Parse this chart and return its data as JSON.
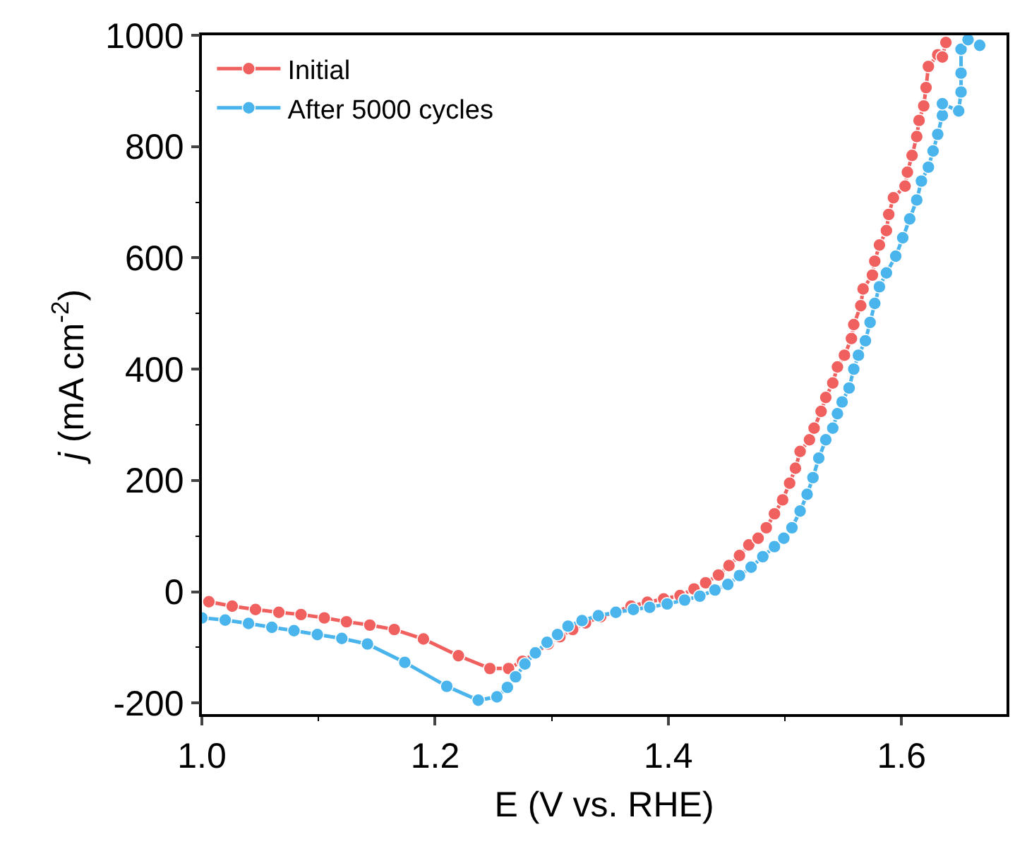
{
  "chart_data": {
    "type": "line",
    "xlabel": "E (V vs. RHE)",
    "ylabel": "j (mA cm$^{-2}$)",
    "xlim": [
      1.0,
      1.69
    ],
    "xticks": [
      {
        "value": 1.0,
        "label": "1.0"
      },
      {
        "value": 1.2,
        "label": "1.2"
      },
      {
        "value": 1.4,
        "label": "1.4"
      },
      {
        "value": 1.6,
        "label": "1.6"
      }
    ],
    "ylim": [
      -220,
      1000
    ],
    "yticks": [
      -200,
      0,
      200,
      400,
      600,
      800,
      1000
    ],
    "legend": "top left",
    "marker": "circle",
    "line_style": "solid",
    "series": [
      {
        "name": "Initial",
        "color": "#f0605f",
        "x": [
          1.006,
          1.026,
          1.046,
          1.066,
          1.085,
          1.105,
          1.124,
          1.144,
          1.165,
          1.19,
          1.22,
          1.247,
          1.263,
          1.275,
          1.286,
          1.297,
          1.307,
          1.318,
          1.329,
          1.342,
          1.355,
          1.368,
          1.382,
          1.396,
          1.41,
          1.422,
          1.432,
          1.443,
          1.452,
          1.461,
          1.469,
          1.477,
          1.484,
          1.491,
          1.498,
          1.504,
          1.509,
          1.513,
          1.521,
          1.525,
          1.531,
          1.535,
          1.541,
          1.545,
          1.551,
          1.557,
          1.559,
          1.565,
          1.567,
          1.575,
          1.577,
          1.581,
          1.587,
          1.589,
          1.593,
          1.603,
          1.605,
          1.609,
          1.613,
          1.615,
          1.619,
          1.621,
          1.623,
          1.631,
          1.635,
          1.638
        ],
        "values": [
          -18,
          -26,
          -32,
          -37,
          -41,
          -47,
          -54,
          -60,
          -68,
          -85,
          -115,
          -138,
          -138,
          -125,
          -110,
          -94,
          -81,
          -68,
          -56,
          -45,
          -36,
          -26,
          -19,
          -13,
          -7,
          5,
          16,
          30,
          47,
          65,
          84,
          96,
          115,
          140,
          165,
          195,
          222,
          252,
          273,
          294,
          324,
          349,
          375,
          404,
          425,
          455,
          480,
          514,
          544,
          569,
          594,
          623,
          649,
          678,
          708,
          729,
          754,
          784,
          818,
          847,
          873,
          906,
          944,
          965,
          961,
          987
        ]
      },
      {
        "name": "After 5000 cycles",
        "color": "#4ab4ec",
        "x": [
          1.0,
          1.02,
          1.04,
          1.06,
          1.079,
          1.099,
          1.12,
          1.142,
          1.174,
          1.21,
          1.237,
          1.253,
          1.262,
          1.269,
          1.277,
          1.286,
          1.296,
          1.305,
          1.314,
          1.326,
          1.34,
          1.355,
          1.37,
          1.384,
          1.399,
          1.414,
          1.427,
          1.44,
          1.451,
          1.461,
          1.471,
          1.481,
          1.491,
          1.499,
          1.506,
          1.513,
          1.519,
          1.524,
          1.529,
          1.535,
          1.541,
          1.545,
          1.549,
          1.555,
          1.559,
          1.563,
          1.569,
          1.573,
          1.577,
          1.581,
          1.587,
          1.595,
          1.601,
          1.607,
          1.613,
          1.617,
          1.623,
          1.627,
          1.631,
          1.635,
          1.635,
          1.649,
          1.651,
          1.651,
          1.651,
          1.657,
          1.667
        ],
        "values": [
          -47,
          -51,
          -57,
          -64,
          -70,
          -77,
          -84,
          -94,
          -127,
          -170,
          -195,
          -189,
          -172,
          -153,
          -130,
          -110,
          -91,
          -77,
          -62,
          -52,
          -43,
          -37,
          -32,
          -28,
          -22,
          -15,
          -8,
          3,
          13,
          29,
          44,
          63,
          81,
          96,
          115,
          145,
          175,
          205,
          240,
          273,
          294,
          320,
          341,
          366,
          400,
          425,
          451,
          484,
          518,
          548,
          573,
          603,
          636,
          670,
          704,
          738,
          763,
          792,
          822,
          856,
          877,
          864,
          898,
          932,
          975,
          992,
          982
        ]
      }
    ]
  }
}
